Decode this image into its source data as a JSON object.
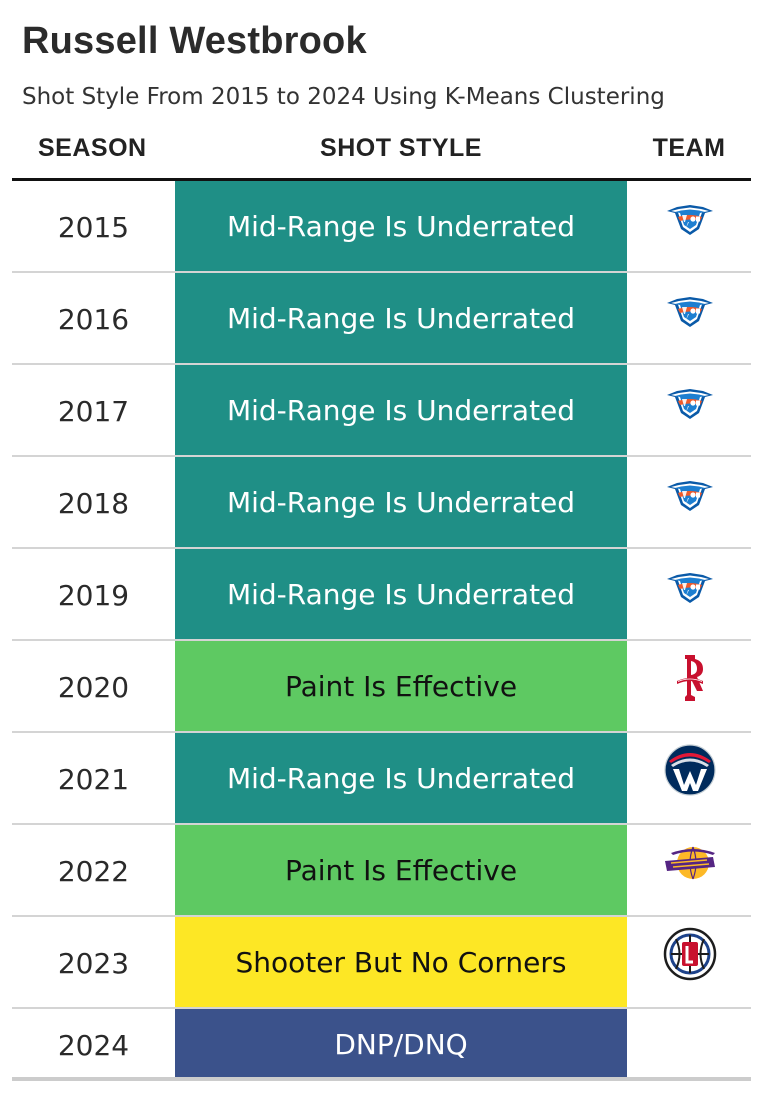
{
  "title": "Russell Westbrook",
  "subtitle": "Shot Style From 2015 to 2024 Using K-Means Clustering",
  "headers": {
    "season": "SEASON",
    "shot_style": "SHOT STYLE",
    "team": "TEAM"
  },
  "style_colors": {
    "Mid-Range Is Underrated": {
      "bg": "#1f8f86",
      "fg": "#ffffff"
    },
    "Paint Is Effective": {
      "bg": "#5ec962",
      "fg": "#111111"
    },
    "Shooter But No Corners": {
      "bg": "#fde725",
      "fg": "#111111"
    },
    "DNP/DNQ": {
      "bg": "#3b528b",
      "fg": "#ffffff"
    }
  },
  "chart_data": {
    "type": "table",
    "title": "Russell Westbrook",
    "subtitle": "Shot Style From 2015 to 2024 Using K-Means Clustering",
    "columns": [
      "SEASON",
      "SHOT STYLE",
      "TEAM"
    ],
    "rows": [
      {
        "season": "2015",
        "shot_style": "Mid-Range Is Underrated",
        "team_logo": "okc-thunder-logo"
      },
      {
        "season": "2016",
        "shot_style": "Mid-Range Is Underrated",
        "team_logo": "okc-thunder-logo"
      },
      {
        "season": "2017",
        "shot_style": "Mid-Range Is Underrated",
        "team_logo": "okc-thunder-logo"
      },
      {
        "season": "2018",
        "shot_style": "Mid-Range Is Underrated",
        "team_logo": "okc-thunder-logo"
      },
      {
        "season": "2019",
        "shot_style": "Mid-Range Is Underrated",
        "team_logo": "okc-thunder-logo"
      },
      {
        "season": "2020",
        "shot_style": "Paint Is Effective",
        "team_logo": "houston-rockets-logo"
      },
      {
        "season": "2021",
        "shot_style": "Mid-Range Is Underrated",
        "team_logo": "washington-wizards-logo"
      },
      {
        "season": "2022",
        "shot_style": "Paint Is Effective",
        "team_logo": "la-lakers-logo"
      },
      {
        "season": "2023",
        "shot_style": "Shooter But No Corners",
        "team_logo": "la-clippers-logo"
      },
      {
        "season": "2024",
        "shot_style": "DNP/DNQ",
        "team_logo": ""
      }
    ]
  }
}
